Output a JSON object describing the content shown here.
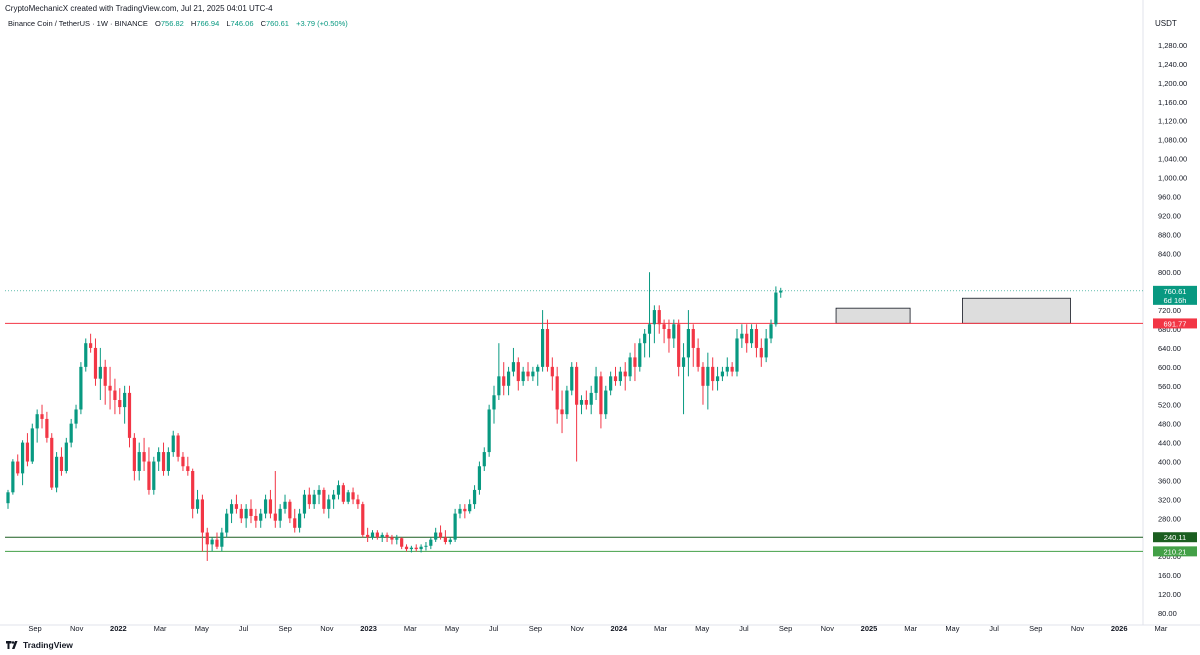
{
  "header": {
    "credit": "CryptoMechanicX created with TradingView.com, Jul 21, 2025 04:01 UTC-4",
    "symbol": "Binance Coin / TetherUS · 1W · BINANCE",
    "o_label": "O",
    "o_value": "756.82",
    "h_label": "H",
    "h_value": "766.94",
    "l_label": "L",
    "l_value": "746.06",
    "c_label": "C",
    "c_value": "760.61",
    "change": "+3.79 (+0.50%)"
  },
  "currency": "USDT",
  "footer": {
    "brand": "TradingView"
  },
  "colors": {
    "up": "#089981",
    "down": "#f23645",
    "resistance": "#f23645",
    "support_dark": "#1b5e20",
    "support_light": "#43a047",
    "box_fill": "#d9d9d9"
  },
  "chart_data": {
    "type": "candlestick",
    "interval": "1W",
    "ylim": [
      80,
      1320
    ],
    "y_ticks": [
      "80.00",
      "120.00",
      "160.00",
      "200.00",
      "240.00",
      "280.00",
      "320.00",
      "360.00",
      "400.00",
      "440.00",
      "480.00",
      "520.00",
      "560.00",
      "600.00",
      "640.00",
      "680.00",
      "720.00",
      "760.00",
      "800.00",
      "840.00",
      "880.00",
      "920.00",
      "960.00",
      "1,000.00",
      "1,040.00",
      "1,080.00",
      "1,120.00",
      "1,160.00",
      "1,200.00",
      "1,240.00",
      "1,280.00"
    ],
    "x_ticks": [
      {
        "label": "Sep",
        "year": false
      },
      {
        "label": "Nov",
        "year": false
      },
      {
        "label": "2022",
        "year": true
      },
      {
        "label": "Mar",
        "year": false
      },
      {
        "label": "May",
        "year": false
      },
      {
        "label": "Jul",
        "year": false
      },
      {
        "label": "Sep",
        "year": false
      },
      {
        "label": "Nov",
        "year": false
      },
      {
        "label": "2023",
        "year": true
      },
      {
        "label": "Mar",
        "year": false
      },
      {
        "label": "May",
        "year": false
      },
      {
        "label": "Jul",
        "year": false
      },
      {
        "label": "Sep",
        "year": false
      },
      {
        "label": "Nov",
        "year": false
      },
      {
        "label": "2024",
        "year": true
      },
      {
        "label": "Mar",
        "year": false
      },
      {
        "label": "May",
        "year": false
      },
      {
        "label": "Jul",
        "year": false
      },
      {
        "label": "Sep",
        "year": false
      },
      {
        "label": "Nov",
        "year": false
      },
      {
        "label": "2025",
        "year": true
      },
      {
        "label": "Mar",
        "year": false
      },
      {
        "label": "May",
        "year": false
      },
      {
        "label": "Jul",
        "year": false
      },
      {
        "label": "Sep",
        "year": false
      },
      {
        "label": "Nov",
        "year": false
      },
      {
        "label": "2026",
        "year": true
      },
      {
        "label": "Mar",
        "year": false
      }
    ],
    "horizontal_levels": [
      {
        "value": 691.77,
        "label": "691.77",
        "style": "resistance"
      },
      {
        "value": 240.11,
        "label": "240.11",
        "style": "support_dark"
      },
      {
        "value": 210.21,
        "label": "210.21",
        "style": "support_light"
      }
    ],
    "last_price": {
      "value": 760.61,
      "label": "760.61",
      "countdown": "6d 16h"
    },
    "boxes": [
      {
        "x_start": 171,
        "x_end": 185,
        "y_low": 692,
        "y_high": 724
      },
      {
        "x_start": 197,
        "x_end": 218,
        "y_low": 692,
        "y_high": 745
      }
    ],
    "candles": [
      [
        312,
        340,
        300,
        335
      ],
      [
        335,
        405,
        330,
        400
      ],
      [
        400,
        415,
        370,
        375
      ],
      [
        375,
        445,
        350,
        440
      ],
      [
        440,
        460,
        390,
        400
      ],
      [
        400,
        480,
        395,
        470
      ],
      [
        470,
        510,
        440,
        500
      ],
      [
        500,
        520,
        470,
        490
      ],
      [
        490,
        505,
        440,
        450
      ],
      [
        450,
        460,
        340,
        345
      ],
      [
        345,
        420,
        335,
        410
      ],
      [
        410,
        430,
        370,
        380
      ],
      [
        380,
        450,
        375,
        440
      ],
      [
        440,
        490,
        430,
        480
      ],
      [
        480,
        520,
        470,
        510
      ],
      [
        510,
        610,
        500,
        600
      ],
      [
        600,
        660,
        590,
        650
      ],
      [
        650,
        670,
        630,
        640
      ],
      [
        640,
        660,
        560,
        575
      ],
      [
        575,
        640,
        530,
        600
      ],
      [
        600,
        615,
        520,
        560
      ],
      [
        560,
        600,
        510,
        550
      ],
      [
        550,
        575,
        500,
        530
      ],
      [
        530,
        555,
        500,
        515
      ],
      [
        515,
        560,
        480,
        545
      ],
      [
        545,
        560,
        430,
        450
      ],
      [
        450,
        460,
        360,
        380
      ],
      [
        380,
        440,
        360,
        420
      ],
      [
        420,
        450,
        380,
        400
      ],
      [
        400,
        430,
        330,
        340
      ],
      [
        340,
        410,
        330,
        400
      ],
      [
        400,
        430,
        380,
        420
      ],
      [
        420,
        440,
        370,
        380
      ],
      [
        380,
        430,
        370,
        420
      ],
      [
        420,
        465,
        410,
        455
      ],
      [
        455,
        460,
        400,
        410
      ],
      [
        410,
        420,
        380,
        390
      ],
      [
        390,
        410,
        370,
        380
      ],
      [
        380,
        385,
        280,
        300
      ],
      [
        300,
        340,
        290,
        320
      ],
      [
        320,
        330,
        210,
        250
      ],
      [
        250,
        260,
        190,
        225
      ],
      [
        225,
        240,
        210,
        235
      ],
      [
        235,
        250,
        215,
        220
      ],
      [
        220,
        260,
        210,
        250
      ],
      [
        250,
        300,
        240,
        290
      ],
      [
        290,
        320,
        270,
        310
      ],
      [
        310,
        330,
        290,
        300
      ],
      [
        300,
        310,
        270,
        280
      ],
      [
        280,
        310,
        260,
        300
      ],
      [
        300,
        320,
        270,
        285
      ],
      [
        285,
        300,
        260,
        275
      ],
      [
        275,
        300,
        260,
        290
      ],
      [
        290,
        330,
        280,
        320
      ],
      [
        320,
        340,
        280,
        290
      ],
      [
        290,
        380,
        260,
        275
      ],
      [
        275,
        310,
        260,
        300
      ],
      [
        300,
        330,
        290,
        315
      ],
      [
        315,
        320,
        270,
        280
      ],
      [
        280,
        300,
        250,
        260
      ],
      [
        260,
        300,
        250,
        290
      ],
      [
        290,
        340,
        280,
        330
      ],
      [
        330,
        345,
        300,
        310
      ],
      [
        310,
        340,
        300,
        330
      ],
      [
        330,
        350,
        310,
        340
      ],
      [
        340,
        345,
        290,
        300
      ],
      [
        300,
        330,
        280,
        320
      ],
      [
        320,
        340,
        300,
        330
      ],
      [
        330,
        360,
        320,
        350
      ],
      [
        350,
        355,
        310,
        315
      ],
      [
        315,
        340,
        310,
        335
      ],
      [
        335,
        345,
        310,
        320
      ],
      [
        320,
        330,
        300,
        310
      ],
      [
        310,
        315,
        240,
        245
      ],
      [
        245,
        260,
        230,
        240
      ],
      [
        240,
        255,
        235,
        250
      ],
      [
        250,
        255,
        235,
        240
      ],
      [
        240,
        250,
        230,
        245
      ],
      [
        245,
        250,
        230,
        240
      ],
      [
        240,
        245,
        225,
        235
      ],
      [
        235,
        245,
        225,
        238
      ],
      [
        238,
        240,
        215,
        220
      ],
      [
        220,
        225,
        210,
        215
      ],
      [
        215,
        222,
        208,
        218
      ],
      [
        218,
        225,
        210,
        215
      ],
      [
        215,
        225,
        208,
        220
      ],
      [
        220,
        230,
        212,
        222
      ],
      [
        222,
        240,
        215,
        235
      ],
      [
        235,
        260,
        230,
        250
      ],
      [
        250,
        265,
        235,
        240
      ],
      [
        240,
        255,
        225,
        230
      ],
      [
        230,
        240,
        225,
        235
      ],
      [
        235,
        300,
        230,
        290
      ],
      [
        290,
        310,
        280,
        300
      ],
      [
        300,
        310,
        280,
        295
      ],
      [
        295,
        320,
        290,
        310
      ],
      [
        310,
        350,
        300,
        340
      ],
      [
        340,
        400,
        330,
        390
      ],
      [
        390,
        430,
        380,
        420
      ],
      [
        420,
        520,
        410,
        510
      ],
      [
        510,
        560,
        480,
        540
      ],
      [
        540,
        650,
        530,
        580
      ],
      [
        580,
        610,
        540,
        560
      ],
      [
        560,
        600,
        540,
        590
      ],
      [
        590,
        640,
        580,
        610
      ],
      [
        610,
        620,
        550,
        570
      ],
      [
        570,
        600,
        560,
        590
      ],
      [
        590,
        610,
        570,
        580
      ],
      [
        580,
        600,
        570,
        590
      ],
      [
        590,
        605,
        560,
        600
      ],
      [
        600,
        720,
        590,
        680
      ],
      [
        680,
        700,
        590,
        600
      ],
      [
        600,
        620,
        550,
        580
      ],
      [
        580,
        600,
        480,
        510
      ],
      [
        510,
        550,
        460,
        500
      ],
      [
        500,
        560,
        490,
        550
      ],
      [
        550,
        610,
        540,
        600
      ],
      [
        600,
        610,
        400,
        520
      ],
      [
        520,
        540,
        500,
        530
      ],
      [
        530,
        550,
        510,
        520
      ],
      [
        520,
        560,
        500,
        545
      ],
      [
        545,
        600,
        530,
        580
      ],
      [
        580,
        590,
        470,
        500
      ],
      [
        500,
        560,
        490,
        550
      ],
      [
        550,
        590,
        540,
        580
      ],
      [
        580,
        600,
        560,
        570
      ],
      [
        570,
        600,
        560,
        590
      ],
      [
        590,
        610,
        550,
        580
      ],
      [
        580,
        630,
        570,
        620
      ],
      [
        620,
        650,
        570,
        600
      ],
      [
        600,
        660,
        590,
        650
      ],
      [
        650,
        680,
        620,
        670
      ],
      [
        670,
        800,
        620,
        690
      ],
      [
        690,
        730,
        650,
        720
      ],
      [
        720,
        730,
        670,
        690
      ],
      [
        690,
        700,
        650,
        680
      ],
      [
        680,
        700,
        630,
        660
      ],
      [
        660,
        700,
        640,
        690
      ],
      [
        690,
        700,
        580,
        600
      ],
      [
        600,
        650,
        500,
        620
      ],
      [
        620,
        720,
        580,
        680
      ],
      [
        680,
        690,
        600,
        640
      ],
      [
        640,
        660,
        590,
        600
      ],
      [
        600,
        610,
        520,
        560
      ],
      [
        560,
        630,
        510,
        600
      ],
      [
        600,
        620,
        550,
        570
      ],
      [
        570,
        600,
        550,
        580
      ],
      [
        580,
        600,
        570,
        590
      ],
      [
        590,
        620,
        580,
        600
      ],
      [
        600,
        610,
        580,
        590
      ],
      [
        590,
        680,
        580,
        660
      ],
      [
        660,
        690,
        640,
        670
      ],
      [
        670,
        690,
        630,
        650
      ],
      [
        650,
        690,
        640,
        680
      ],
      [
        680,
        690,
        620,
        640
      ],
      [
        640,
        660,
        600,
        620
      ],
      [
        620,
        680,
        610,
        660
      ],
      [
        660,
        700,
        650,
        690
      ],
      [
        690,
        770,
        685,
        757
      ],
      [
        757,
        767,
        746,
        761
      ]
    ]
  }
}
